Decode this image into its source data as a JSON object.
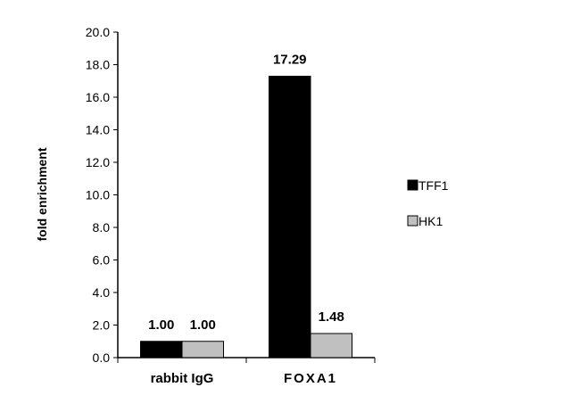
{
  "chart_data": {
    "type": "bar",
    "categories": [
      "rabbit IgG",
      "FOXA1"
    ],
    "series": [
      {
        "name": "TFF1",
        "values": [
          1.0,
          17.29
        ],
        "color": "#000000"
      },
      {
        "name": "HK1",
        "values": [
          1.0,
          1.48
        ],
        "color": "#c0c0c0"
      }
    ],
    "data_labels": [
      [
        "1.00",
        "17.29"
      ],
      [
        "1.00",
        "1.48"
      ]
    ],
    "ylabel": "fold enrichment",
    "xlabel": "",
    "ylim": [
      0,
      20
    ],
    "yticks": [
      "0.0",
      "2.0",
      "4.0",
      "6.0",
      "8.0",
      "10.0",
      "12.0",
      "14.0",
      "16.0",
      "18.0",
      "20.0"
    ],
    "grid": false,
    "legend": "right"
  }
}
